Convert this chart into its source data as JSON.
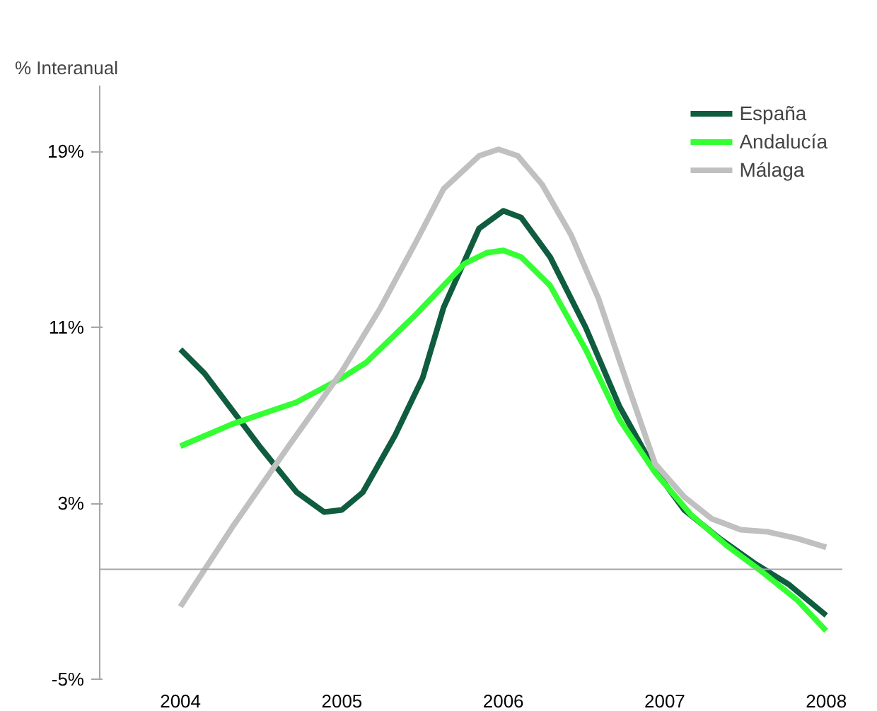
{
  "chart_data": {
    "type": "line",
    "ylabel": "% Interanual",
    "xlim": [
      2003.5,
      2008.1
    ],
    "ylim": [
      -5,
      22
    ],
    "xticks": [
      2004,
      2005,
      2006,
      2007,
      2008
    ],
    "yticks": [
      {
        "value": -5,
        "label": "-5%"
      },
      {
        "value": 3,
        "label": "3%"
      },
      {
        "value": 11,
        "label": "11%"
      },
      {
        "value": 19,
        "label": "19%"
      }
    ],
    "grid": false,
    "legend": "top right",
    "marker": "none",
    "line_style": "solid",
    "ref_lines": [
      {
        "axis": "y",
        "value": 0,
        "color": "#a6a6a6"
      }
    ],
    "series": [
      {
        "name": "España",
        "color": "#0f5c3f",
        "x": [
          2004.0,
          2004.15,
          2004.5,
          2004.72,
          2004.89,
          2005.0,
          2005.13,
          2005.33,
          2005.5,
          2005.63,
          2005.85,
          2006.0,
          2006.11,
          2006.29,
          2006.51,
          2006.72,
          2006.94,
          2007.12,
          2007.34,
          2007.55,
          2007.77,
          2008.0
        ],
        "values": [
          10.0,
          8.9,
          5.5,
          3.5,
          2.6,
          2.7,
          3.5,
          6.1,
          8.7,
          11.9,
          15.5,
          16.3,
          16.0,
          14.2,
          11.0,
          7.4,
          4.5,
          2.7,
          1.4,
          0.3,
          -0.7,
          -2.1
        ]
      },
      {
        "name": "Andalucía",
        "color": "#33ff33",
        "x": [
          2004.0,
          2004.32,
          2004.72,
          2005.0,
          2005.15,
          2005.46,
          2005.76,
          2005.9,
          2006.0,
          2006.11,
          2006.29,
          2006.51,
          2006.72,
          2006.94,
          2007.16,
          2007.38,
          2007.6,
          2007.82,
          2008.0
        ],
        "values": [
          5.6,
          6.6,
          7.6,
          8.7,
          9.4,
          11.6,
          13.9,
          14.4,
          14.5,
          14.2,
          12.9,
          10.0,
          6.8,
          4.4,
          2.5,
          1.1,
          -0.1,
          -1.4,
          -2.8
        ]
      },
      {
        "name": "Málaga",
        "color": "#c0c0c0",
        "x": [
          2004.0,
          2004.32,
          2004.67,
          2005.0,
          2005.24,
          2005.46,
          2005.63,
          2005.85,
          2005.97,
          2006.09,
          2006.24,
          2006.42,
          2006.59,
          2006.77,
          2006.94,
          2007.12,
          2007.29,
          2007.47,
          2007.64,
          2007.82,
          2008.0
        ],
        "values": [
          -1.7,
          1.9,
          5.6,
          9.0,
          11.9,
          14.9,
          17.3,
          18.8,
          19.1,
          18.8,
          17.5,
          15.2,
          12.3,
          8.4,
          4.8,
          3.3,
          2.3,
          1.8,
          1.7,
          1.4,
          1.0
        ]
      }
    ]
  }
}
